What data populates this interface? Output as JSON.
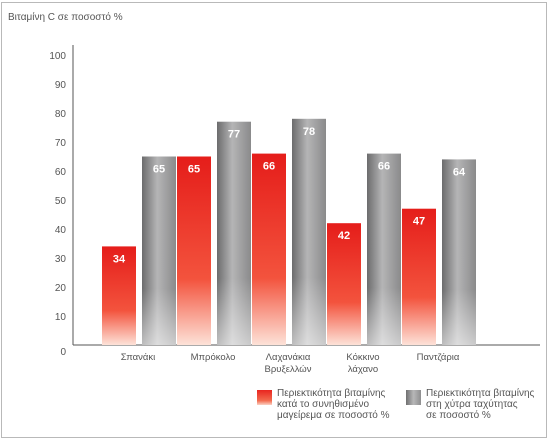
{
  "chart_data": {
    "type": "bar",
    "ylabel": "Βιταμίνη C σε ποσοστό %",
    "ylim": [
      0,
      100
    ],
    "yticks": [
      0,
      10,
      20,
      30,
      40,
      50,
      60,
      70,
      80,
      90,
      100
    ],
    "categories": [
      "Σπανάκι",
      "Μπρόκολο",
      "Λαχανάκια\nΒρυξελλών",
      "Κόκκινο\nλάχανο",
      "Παντζάρια"
    ],
    "series": [
      {
        "name": "Περιεκτικότητα βιταμίνης κατά το συνηθισμένο μαγείρεμα σε ποσοστό %",
        "values": [
          34,
          65,
          66,
          42,
          47
        ],
        "color": "#e8251f"
      },
      {
        "name": "Περιεκτικότητα βιταμίνης στη χύτρα ταχύτητας σε ποσοστό %",
        "values": [
          65,
          77,
          78,
          66,
          64
        ],
        "color": "#9a9a9b"
      }
    ],
    "grid": false,
    "legend_position": "bottom-right"
  },
  "legend": {
    "red_lines": [
      "Περιεκτικότητα βιταμίνης",
      "κατά το συνηθισμένο",
      "μαγείρεμα σε ποσοστό %"
    ],
    "gray_lines": [
      "Περιεκτικότητα βιταμίνης",
      "στη χύτρα ταχύτητας",
      "σε ποσοστό %"
    ]
  }
}
